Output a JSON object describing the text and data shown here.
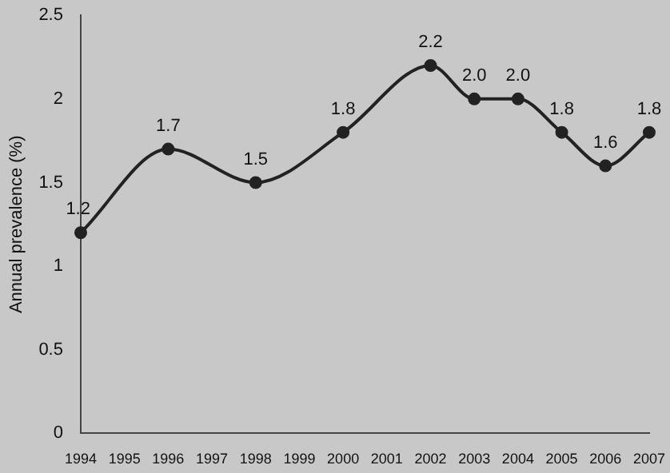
{
  "chart_data": {
    "type": "line",
    "ylabel": "Annual prevalence (%)",
    "categories": [
      "1994",
      "1995",
      "1996",
      "1997",
      "1998",
      "1999",
      "2000",
      "2001",
      "2002",
      "2003",
      "2004",
      "2005",
      "2006",
      "2007"
    ],
    "series": [
      {
        "color": "#222222",
        "values": [
          1.2,
          null,
          1.7,
          null,
          1.5,
          null,
          1.8,
          null,
          2.2,
          2.0,
          2.0,
          1.8,
          1.6,
          1.8
        ],
        "value_labels": [
          "1.2",
          null,
          "1.7",
          null,
          "1.5",
          null,
          "1.8",
          null,
          "2.2",
          "2.0",
          "2.0",
          "1.8",
          "1.6",
          "1.8"
        ]
      }
    ],
    "ylim": [
      0,
      2.5
    ],
    "yticks": [
      0,
      0.5,
      1,
      1.5,
      2,
      2.5
    ],
    "grid": false,
    "legend": false,
    "marker": "circle",
    "line_style": "solid"
  }
}
